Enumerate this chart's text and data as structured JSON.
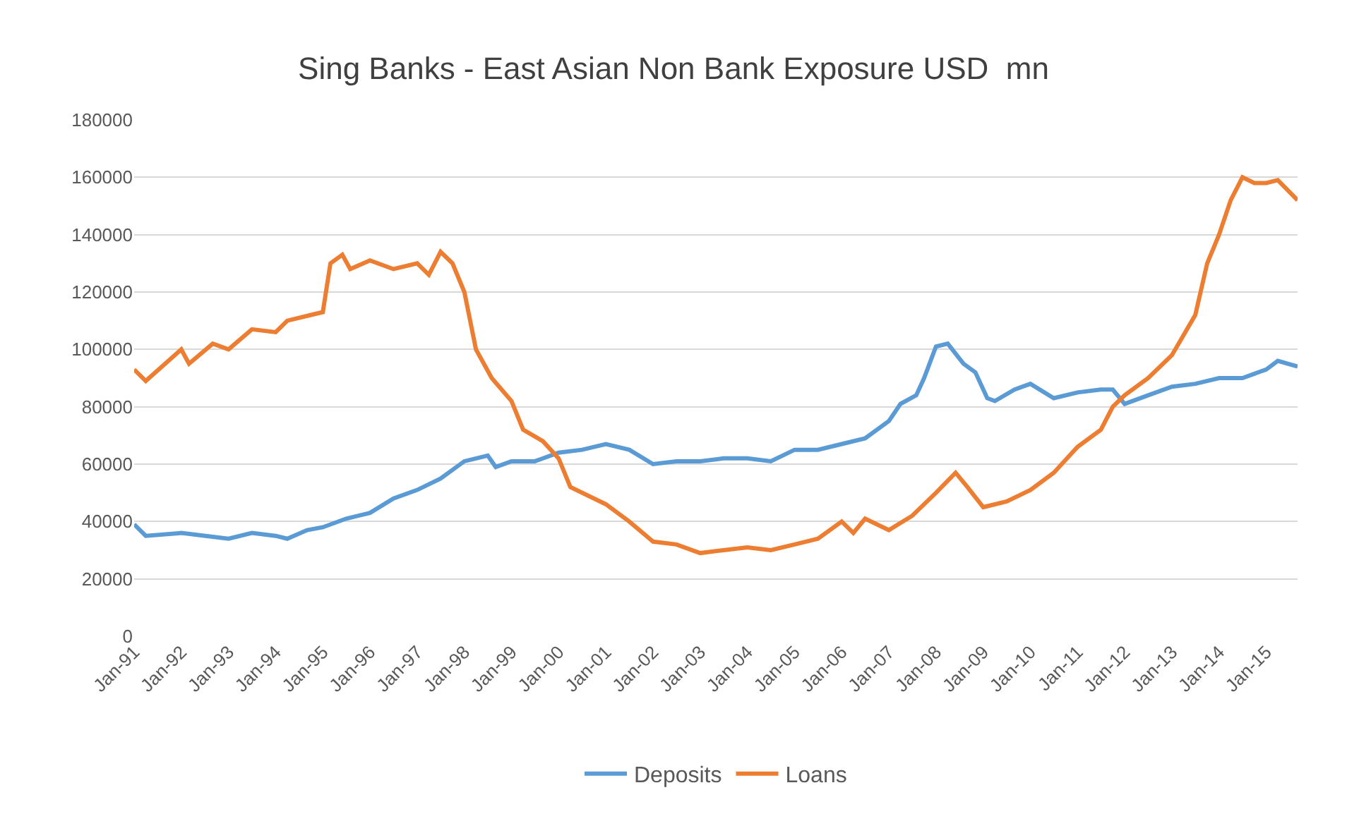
{
  "chart_data": {
    "type": "line",
    "title": "Sing Banks - East Asian Non Bank Exposure USD  mn",
    "xlim": [
      "1991-01",
      "2015-09"
    ],
    "xticks": [
      {
        "value": "1991-01",
        "label": "Jan-91"
      },
      {
        "value": "1992-01",
        "label": "Jan-92"
      },
      {
        "value": "1993-01",
        "label": "Jan-93"
      },
      {
        "value": "1994-01",
        "label": "Jan-94"
      },
      {
        "value": "1995-01",
        "label": "Jan-95"
      },
      {
        "value": "1996-01",
        "label": "Jan-96"
      },
      {
        "value": "1997-01",
        "label": "Jan-97"
      },
      {
        "value": "1998-01",
        "label": "Jan-98"
      },
      {
        "value": "1999-01",
        "label": "Jan-99"
      },
      {
        "value": "2000-01",
        "label": "Jan-00"
      },
      {
        "value": "2001-01",
        "label": "Jan-01"
      },
      {
        "value": "2002-01",
        "label": "Jan-02"
      },
      {
        "value": "2003-01",
        "label": "Jan-03"
      },
      {
        "value": "2004-01",
        "label": "Jan-04"
      },
      {
        "value": "2005-01",
        "label": "Jan-05"
      },
      {
        "value": "2006-01",
        "label": "Jan-06"
      },
      {
        "value": "2007-01",
        "label": "Jan-07"
      },
      {
        "value": "2008-01",
        "label": "Jan-08"
      },
      {
        "value": "2009-01",
        "label": "Jan-09"
      },
      {
        "value": "2010-01",
        "label": "Jan-10"
      },
      {
        "value": "2011-01",
        "label": "Jan-11"
      },
      {
        "value": "2012-01",
        "label": "Jan-12"
      },
      {
        "value": "2013-01",
        "label": "Jan-13"
      },
      {
        "value": "2014-01",
        "label": "Jan-14"
      },
      {
        "value": "2015-01",
        "label": "Jan-15"
      }
    ],
    "ylim": [
      0,
      180000
    ],
    "yticks": [
      0,
      20000,
      40000,
      60000,
      80000,
      100000,
      120000,
      140000,
      160000,
      180000
    ],
    "grid": "y",
    "legend": "bottom",
    "marker": "none",
    "line_style": "solid",
    "series": [
      {
        "name": "Deposits",
        "color": "#5b9bd5",
        "x": [
          "1991-01",
          "1991-04",
          "1992-01",
          "1993-01",
          "1993-07",
          "1994-01",
          "1994-04",
          "1994-09",
          "1995-01",
          "1995-07",
          "1996-01",
          "1996-07",
          "1997-01",
          "1997-07",
          "1998-01",
          "1998-07",
          "1998-09",
          "1999-01",
          "1999-07",
          "2000-01",
          "2000-07",
          "2001-01",
          "2001-07",
          "2002-01",
          "2002-07",
          "2003-01",
          "2003-07",
          "2004-01",
          "2004-07",
          "2005-01",
          "2005-07",
          "2006-01",
          "2006-07",
          "2007-01",
          "2007-04",
          "2007-08",
          "2007-10",
          "2008-01",
          "2008-04",
          "2008-08",
          "2008-11",
          "2009-02",
          "2009-04",
          "2009-09",
          "2010-01",
          "2010-07",
          "2011-01",
          "2011-07",
          "2011-10",
          "2012-01",
          "2012-07",
          "2013-01",
          "2013-07",
          "2014-01",
          "2014-07",
          "2015-01",
          "2015-04",
          "2015-09"
        ],
        "values": [
          39000,
          35000,
          36000,
          34000,
          36000,
          35000,
          34000,
          37000,
          38000,
          41000,
          43000,
          48000,
          51000,
          55000,
          61000,
          63000,
          59000,
          61000,
          61000,
          64000,
          65000,
          67000,
          65000,
          60000,
          61000,
          61000,
          62000,
          62000,
          61000,
          65000,
          65000,
          67000,
          69000,
          75000,
          81000,
          84000,
          90000,
          101000,
          102000,
          95000,
          92000,
          83000,
          82000,
          86000,
          88000,
          83000,
          85000,
          86000,
          86000,
          81000,
          84000,
          87000,
          88000,
          90000,
          90000,
          93000,
          96000,
          94000
        ]
      },
      {
        "name": "Loans",
        "color": "#ed7d31",
        "x": [
          "1991-01",
          "1991-04",
          "1992-01",
          "1992-03",
          "1992-09",
          "1993-01",
          "1993-07",
          "1994-01",
          "1994-04",
          "1994-10",
          "1995-01",
          "1995-03",
          "1995-06",
          "1995-08",
          "1996-01",
          "1996-07",
          "1997-01",
          "1997-04",
          "1997-07",
          "1997-10",
          "1998-01",
          "1998-04",
          "1998-08",
          "1999-01",
          "1999-04",
          "1999-09",
          "2000-01",
          "2000-04",
          "2000-10",
          "2001-01",
          "2001-07",
          "2002-01",
          "2002-07",
          "2003-01",
          "2003-07",
          "2004-01",
          "2004-07",
          "2005-01",
          "2005-07",
          "2006-01",
          "2006-04",
          "2006-07",
          "2007-01",
          "2007-07",
          "2008-01",
          "2008-06",
          "2008-09",
          "2009-01",
          "2009-07",
          "2010-01",
          "2010-07",
          "2011-01",
          "2011-07",
          "2011-10",
          "2012-01",
          "2012-07",
          "2013-01",
          "2013-07",
          "2013-10",
          "2014-01",
          "2014-04",
          "2014-07",
          "2014-10",
          "2015-01",
          "2015-04",
          "2015-09"
        ],
        "values": [
          93000,
          89000,
          100000,
          95000,
          102000,
          100000,
          107000,
          106000,
          110000,
          112000,
          113000,
          130000,
          133000,
          128000,
          131000,
          128000,
          130000,
          126000,
          134000,
          130000,
          120000,
          100000,
          90000,
          82000,
          72000,
          68000,
          62000,
          52000,
          48000,
          46000,
          40000,
          33000,
          32000,
          29000,
          30000,
          31000,
          30000,
          32000,
          34000,
          40000,
          36000,
          41000,
          37000,
          42000,
          50000,
          57000,
          52000,
          45000,
          47000,
          51000,
          57000,
          66000,
          72000,
          80000,
          84000,
          90000,
          98000,
          112000,
          130000,
          140000,
          152000,
          160000,
          158000,
          158000,
          159000,
          152000
        ]
      }
    ]
  }
}
